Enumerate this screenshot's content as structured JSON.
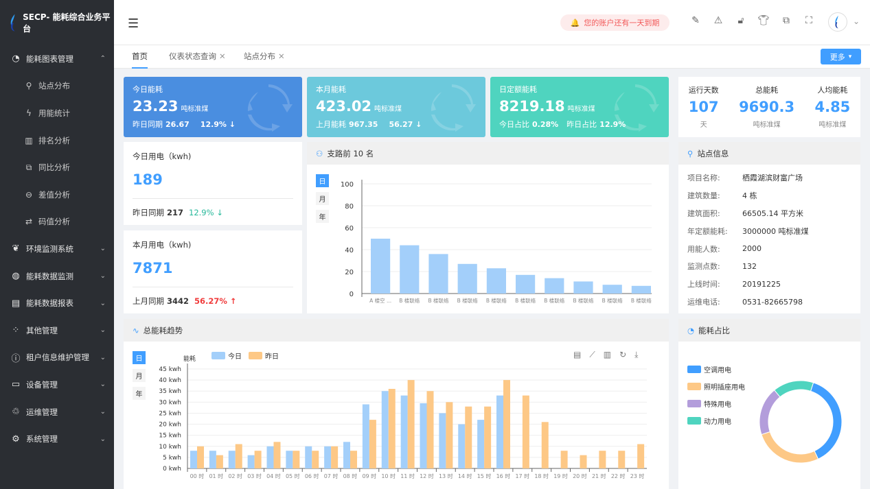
{
  "app": {
    "title": "SECP- 能耗综合业务平台"
  },
  "sidebar": {
    "items": [
      {
        "label": "能耗图表管理",
        "icon": "pie-chart-icon",
        "expanded": true,
        "children": [
          {
            "label": "站点分布",
            "icon": "antenna-icon"
          },
          {
            "label": "用能统计",
            "icon": "lightning-icon"
          },
          {
            "label": "排名分析",
            "icon": "bar-chart-icon"
          },
          {
            "label": "同比分析",
            "icon": "copy-icon"
          },
          {
            "label": "差值分析",
            "icon": "minus-circle-icon"
          },
          {
            "label": "码值分析",
            "icon": "swap-icon"
          }
        ]
      },
      {
        "label": "环境监测系统",
        "icon": "leaf-icon"
      },
      {
        "label": "能耗数据监测",
        "icon": "gauge-icon"
      },
      {
        "label": "能耗数据报表",
        "icon": "report-icon"
      },
      {
        "label": "其他管理",
        "icon": "grid-icon"
      },
      {
        "label": "租户信息维护管理",
        "icon": "info-icon"
      },
      {
        "label": "设备管理",
        "icon": "message-icon"
      },
      {
        "label": "运维管理",
        "icon": "recycle-icon"
      },
      {
        "label": "系统管理",
        "icon": "gear-icon"
      }
    ]
  },
  "header": {
    "notice": "您的账户还有一天到期",
    "icons": [
      "palette-icon",
      "warning-icon",
      "lock-icon",
      "shirt-icon",
      "translate-icon",
      "fullscreen-icon"
    ]
  },
  "tabs": [
    {
      "label": "首页",
      "active": true
    },
    {
      "label": "仪表状态查询",
      "closable": true
    },
    {
      "label": "站点分布",
      "closable": true
    }
  ],
  "more_label": "更多",
  "cards": [
    {
      "title": "今日能耗",
      "value": "23.23",
      "unit": "吨标准煤",
      "b1_label": "昨日同期",
      "b1_value": "26.67",
      "b2_value": "12.9% ↓",
      "color": "#4a8ee0"
    },
    {
      "title": "本月能耗",
      "value": "423.02",
      "unit": "吨标准煤",
      "b1_label": "上月能耗",
      "b1_value": "967.35",
      "b2_value": "56.27 ↓",
      "color": "#6cc9dc"
    },
    {
      "title": "日定额能耗",
      "value": "8219.18",
      "unit": "吨标准煤",
      "b1_label": "今日占比",
      "b1_value": "0.28%",
      "b2_label": "昨日占比",
      "b2_value": "12.9%",
      "color": "#4fd4bf"
    }
  ],
  "stats": [
    {
      "label": "运行天数",
      "value": "107",
      "unit": "天"
    },
    {
      "label": "总能耗",
      "value": "9690.3",
      "unit": "吨标准煤"
    },
    {
      "label": "人均能耗",
      "value": "4.85",
      "unit": "吨标准煤"
    }
  ],
  "elec_today": {
    "label": "今日用电（kwh)",
    "value": "189",
    "cmp_label": "昨日同期",
    "cmp_value": "217",
    "change": "12.9% ↓",
    "change_color": "#26b89a"
  },
  "elec_month": {
    "label": "本月用电（kwh)",
    "value": "7871",
    "cmp_label": "上月同期",
    "cmp_value": "3442",
    "change": "56.27% ↑",
    "change_color": "#f03c3c"
  },
  "site": {
    "title": "站点信息",
    "rows": [
      {
        "k": "项目名称:",
        "v": "栖霞湖滨财富广场"
      },
      {
        "k": "建筑数量:",
        "v": "4 栋"
      },
      {
        "k": "建筑面积:",
        "v": "66505.14 平方米"
      },
      {
        "k": "年定额能耗:",
        "v": "3000000 吨标准煤"
      },
      {
        "k": "用能人数:",
        "v": "2000"
      },
      {
        "k": "监测点数:",
        "v": "132"
      },
      {
        "k": "上线时间:",
        "v": "20191225"
      },
      {
        "k": "运维电话:",
        "v": "0531-82665798"
      }
    ]
  },
  "periods": [
    "日",
    "月",
    "年"
  ],
  "chart_data": [
    {
      "title": "支路前 10 名",
      "type": "bar",
      "categories": [
        "A 楼空 ...",
        "B 楼联络",
        "B 楼联络",
        "B 楼联络",
        "B 楼联络",
        "B 楼联络",
        "B 楼联络",
        "B 楼联络",
        "B 楼联络",
        "B 楼联络"
      ],
      "values": [
        50,
        44,
        36,
        27,
        23,
        17,
        14,
        11,
        8,
        7
      ],
      "ylim": [
        0,
        100
      ],
      "yticks": [
        0,
        20,
        40,
        60,
        80,
        100
      ],
      "color": "#a3cffa",
      "grid": true
    },
    {
      "title": "总能耗趋势",
      "type": "bar",
      "ylabel": "能耗",
      "categories": [
        "00 时",
        "01 时",
        "02 时",
        "03 时",
        "04 时",
        "05 时",
        "06 时",
        "07 时",
        "08 时",
        "09 时",
        "10 时",
        "11 时",
        "12 时",
        "13 时",
        "14 时",
        "15 时",
        "16 时",
        "17 时",
        "18 时",
        "19 时",
        "20 时",
        "21 时",
        "22 时",
        "23 时"
      ],
      "series": [
        {
          "name": "今日",
          "color": "#a3cffa",
          "values": [
            8,
            8,
            8,
            6,
            10,
            8,
            10,
            10,
            12,
            29,
            35,
            33,
            29.5,
            25,
            20,
            22,
            33,
            null,
            null,
            null,
            null,
            null,
            null,
            null
          ]
        },
        {
          "name": "昨日",
          "color": "#fdc886",
          "values": [
            10,
            6,
            11,
            8,
            12,
            8,
            8,
            10,
            8,
            22,
            36,
            40,
            35,
            30,
            28,
            28,
            40,
            33,
            21,
            8,
            6,
            8,
            8,
            11
          ]
        }
      ],
      "ylim": [
        0,
        45
      ],
      "yticks": [
        "0 kwh",
        "5 kwh",
        "10 kwh",
        "15 kwh",
        "20 kwh",
        "25 kwh",
        "30 kwh",
        "35 kwh",
        "40 kwh",
        "45 kwh"
      ],
      "legend": "top-left",
      "grid": true,
      "toolbox": [
        "data-view-icon",
        "line-chart-icon",
        "bar-chart-icon",
        "refresh-icon",
        "download-icon"
      ]
    },
    {
      "title": "能耗占比",
      "type": "pie",
      "donut": true,
      "categories": [
        "空调用电",
        "照明插座用电",
        "特殊用电",
        "动力用电"
      ],
      "values": [
        38,
        27,
        19,
        16
      ],
      "colors": [
        "#409eff",
        "#fdc886",
        "#b39ddb",
        "#4fd4bf"
      ],
      "legend": "left"
    }
  ]
}
